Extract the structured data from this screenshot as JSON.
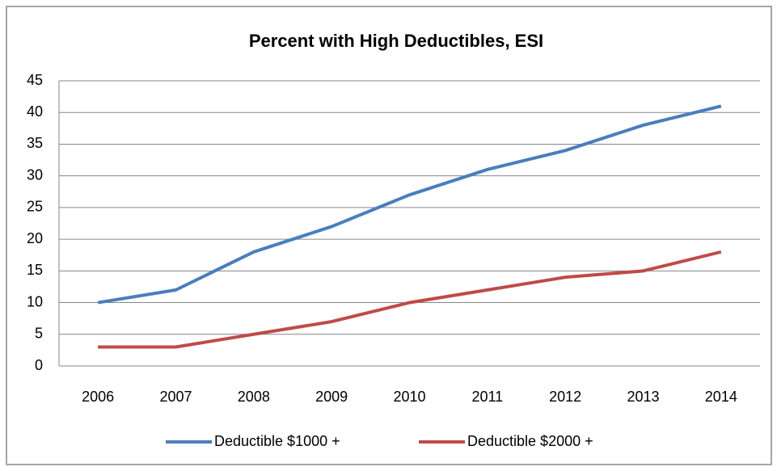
{
  "chart_data": {
    "type": "line",
    "title": "Percent with High Deductibles, ESI",
    "categories": [
      "2006",
      "2007",
      "2008",
      "2009",
      "2010",
      "2011",
      "2012",
      "2013",
      "2014"
    ],
    "series": [
      {
        "name": "Deductible $1000 +",
        "color": "#4a7ebb",
        "values": [
          10,
          12,
          18,
          22,
          27,
          31,
          34,
          38,
          41
        ]
      },
      {
        "name": "Deductible $2000 +",
        "color": "#be4b48",
        "values": [
          3,
          3,
          5,
          7,
          10,
          12,
          14,
          15,
          18
        ]
      }
    ],
    "ylim": [
      0,
      45
    ],
    "yticks": [
      0,
      5,
      10,
      15,
      20,
      25,
      30,
      35,
      40,
      45
    ],
    "grid": true,
    "legend": "bottom"
  }
}
